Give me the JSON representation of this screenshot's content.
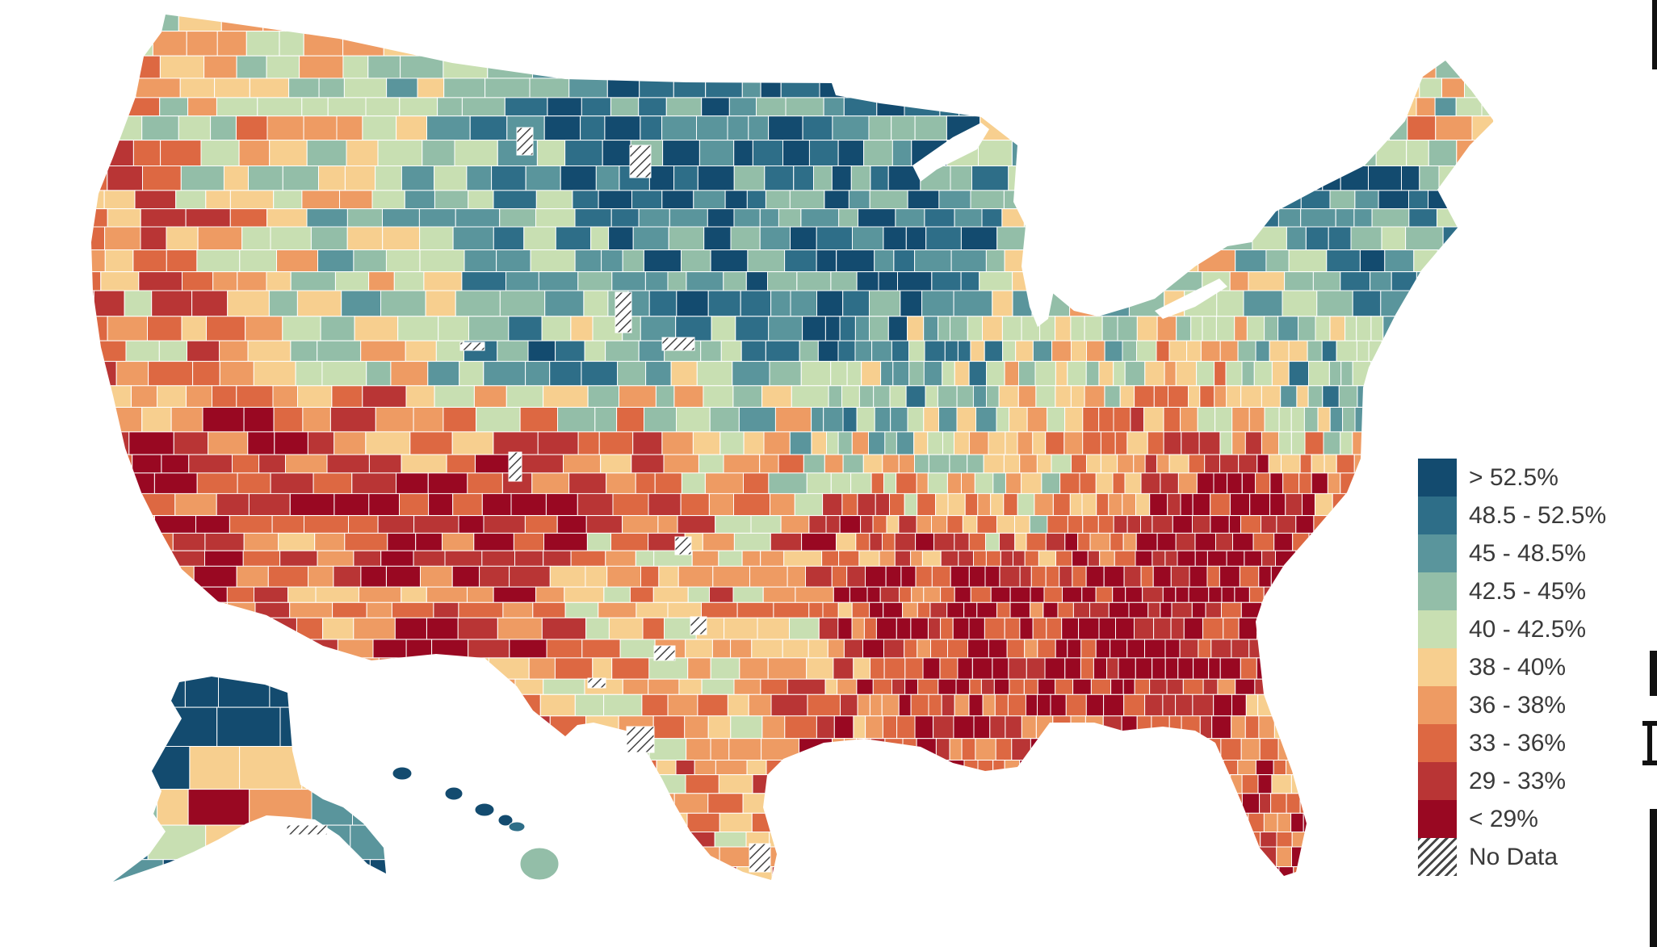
{
  "legend": {
    "items": [
      {
        "label": "> 52.5%",
        "color": "#134b6f"
      },
      {
        "label": "48.5 - 52.5%",
        "color": "#2e6e88"
      },
      {
        "label": "45 - 48.5%",
        "color": "#5a959c"
      },
      {
        "label": "42.5 - 45%",
        "color": "#93bea8"
      },
      {
        "label": "40 - 42.5%",
        "color": "#c8dfb2"
      },
      {
        "label": "38 - 40%",
        "color": "#f7cf8f"
      },
      {
        "label": "36 - 38%",
        "color": "#ee9b63"
      },
      {
        "label": "33 - 36%",
        "color": "#dd6842"
      },
      {
        "label": "29 - 33%",
        "color": "#b93535"
      },
      {
        "label": "< 29%",
        "color": "#990822"
      }
    ],
    "no_data_label": "No Data"
  },
  "colors": {
    "background": "#ffffff",
    "border": "#ffffff",
    "no_data_stripe": "#444444"
  }
}
